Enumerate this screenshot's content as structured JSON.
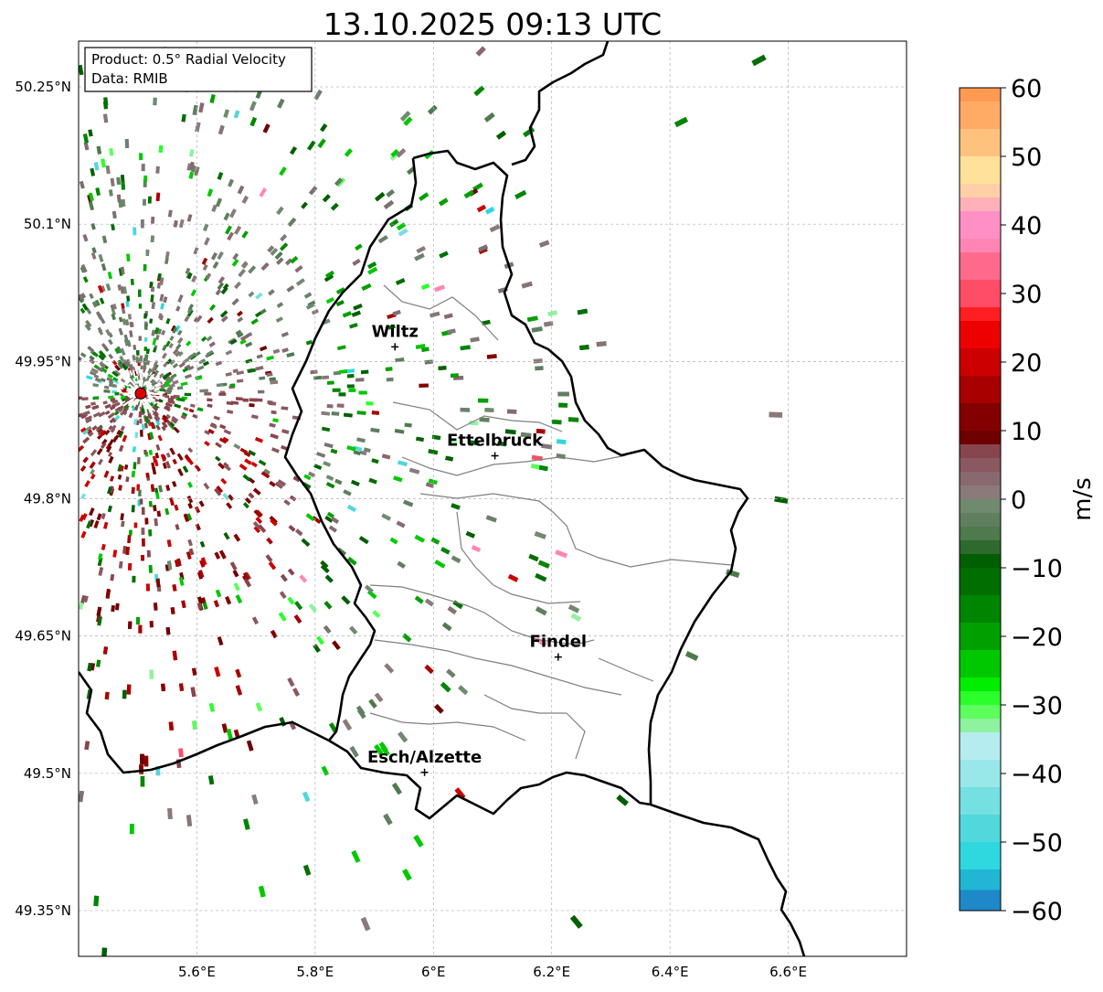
{
  "title": "13.10.2025 09:13 UTC",
  "info_box": {
    "product": "Product: 0.5° Radial Velocity",
    "data": "Data: RMIB"
  },
  "map": {
    "lon_range": [
      5.4,
      6.8
    ],
    "lat_range": [
      49.3,
      50.3
    ],
    "x_ticks": [
      {
        "value": 5.6,
        "label": "5.6°E"
      },
      {
        "value": 5.8,
        "label": "5.8°E"
      },
      {
        "value": 6.0,
        "label": "6°E"
      },
      {
        "value": 6.2,
        "label": "6.2°E"
      },
      {
        "value": 6.4,
        "label": "6.4°E"
      },
      {
        "value": 6.6,
        "label": "6.6°E"
      }
    ],
    "y_ticks": [
      {
        "value": 50.25,
        "label": "50.25°N"
      },
      {
        "value": 50.1,
        "label": "50.1°N"
      },
      {
        "value": 49.95,
        "label": "49.95°N"
      },
      {
        "value": 49.8,
        "label": "49.8°N"
      },
      {
        "value": 49.65,
        "label": "49.65°N"
      },
      {
        "value": 49.5,
        "label": "49.5°N"
      },
      {
        "value": 49.35,
        "label": "49.35°N"
      }
    ],
    "radar_site": {
      "lon": 5.505,
      "lat": 49.915
    },
    "places": [
      {
        "name": "Wiltz",
        "lon": 5.935,
        "lat": 49.966
      },
      {
        "name": "Ettelbruck",
        "lon": 6.104,
        "lat": 49.847
      },
      {
        "name": "Findel",
        "lon": 6.211,
        "lat": 49.627
      },
      {
        "name": "Esch/Alzette",
        "lon": 5.985,
        "lat": 49.501
      }
    ],
    "colors": {
      "border": "#000000",
      "cantons": "#808080",
      "grid": "#b0b0b0",
      "radar_site": "#e00000"
    }
  },
  "colorbar": {
    "label": "m/s",
    "range": [
      -60,
      60
    ],
    "ticks": [
      {
        "value": 60,
        "label": "60"
      },
      {
        "value": 50,
        "label": "50"
      },
      {
        "value": 40,
        "label": "40"
      },
      {
        "value": 30,
        "label": "30"
      },
      {
        "value": 20,
        "label": "20"
      },
      {
        "value": 10,
        "label": "10"
      },
      {
        "value": 0,
        "label": "0"
      },
      {
        "value": -10,
        "label": "−10"
      },
      {
        "value": -20,
        "label": "−20"
      },
      {
        "value": -30,
        "label": "−30"
      },
      {
        "value": -40,
        "label": "−40"
      },
      {
        "value": -50,
        "label": "−50"
      },
      {
        "value": -60,
        "label": "−60"
      }
    ],
    "bands": [
      {
        "from": 58,
        "to": 60,
        "color": "#ff9a52"
      },
      {
        "from": 54,
        "to": 58,
        "color": "#ffab66"
      },
      {
        "from": 50,
        "to": 54,
        "color": "#ffc27e"
      },
      {
        "from": 46,
        "to": 50,
        "color": "#ffe19a"
      },
      {
        "from": 44,
        "to": 46,
        "color": "#ffd0a6"
      },
      {
        "from": 42,
        "to": 44,
        "color": "#ffb0b8"
      },
      {
        "from": 38,
        "to": 42,
        "color": "#ff90c6"
      },
      {
        "from": 36,
        "to": 38,
        "color": "#ff86b4"
      },
      {
        "from": 32,
        "to": 36,
        "color": "#ff6a8c"
      },
      {
        "from": 28,
        "to": 32,
        "color": "#ff4d68"
      },
      {
        "from": 26,
        "to": 28,
        "color": "#ff1e22"
      },
      {
        "from": 22,
        "to": 26,
        "color": "#ee0000"
      },
      {
        "from": 18,
        "to": 22,
        "color": "#cc0000"
      },
      {
        "from": 14,
        "to": 18,
        "color": "#a80000"
      },
      {
        "from": 10,
        "to": 14,
        "color": "#840000"
      },
      {
        "from": 8,
        "to": 10,
        "color": "#6e0000"
      },
      {
        "from": 6,
        "to": 8,
        "color": "#87464e"
      },
      {
        "from": 4,
        "to": 6,
        "color": "#8a5860"
      },
      {
        "from": 2,
        "to": 4,
        "color": "#8a6870"
      },
      {
        "from": 0,
        "to": 2,
        "color": "#8a7a7a"
      },
      {
        "from": -2,
        "to": 0,
        "color": "#6f8a6f"
      },
      {
        "from": -4,
        "to": -2,
        "color": "#5f7f5f"
      },
      {
        "from": -6,
        "to": -4,
        "color": "#4e7a4e"
      },
      {
        "from": -8,
        "to": -6,
        "color": "#2e6a2e"
      },
      {
        "from": -10,
        "to": -8,
        "color": "#005f00"
      },
      {
        "from": -14,
        "to": -10,
        "color": "#006e00"
      },
      {
        "from": -18,
        "to": -14,
        "color": "#008500"
      },
      {
        "from": -22,
        "to": -18,
        "color": "#00a000"
      },
      {
        "from": -26,
        "to": -22,
        "color": "#00c800"
      },
      {
        "from": -28,
        "to": -26,
        "color": "#00ee00"
      },
      {
        "from": -30,
        "to": -28,
        "color": "#2bff2b"
      },
      {
        "from": -32,
        "to": -30,
        "color": "#5cff5c"
      },
      {
        "from": -34,
        "to": -32,
        "color": "#8ef29e"
      },
      {
        "from": -38,
        "to": -34,
        "color": "#b4ecf0"
      },
      {
        "from": -42,
        "to": -38,
        "color": "#98e8ea"
      },
      {
        "from": -46,
        "to": -42,
        "color": "#74e0e2"
      },
      {
        "from": -50,
        "to": -46,
        "color": "#50d8dc"
      },
      {
        "from": -54,
        "to": -50,
        "color": "#2ed8de"
      },
      {
        "from": -57,
        "to": -54,
        "color": "#20b6d4"
      },
      {
        "from": -60,
        "to": -57,
        "color": "#1e88c8"
      }
    ]
  }
}
